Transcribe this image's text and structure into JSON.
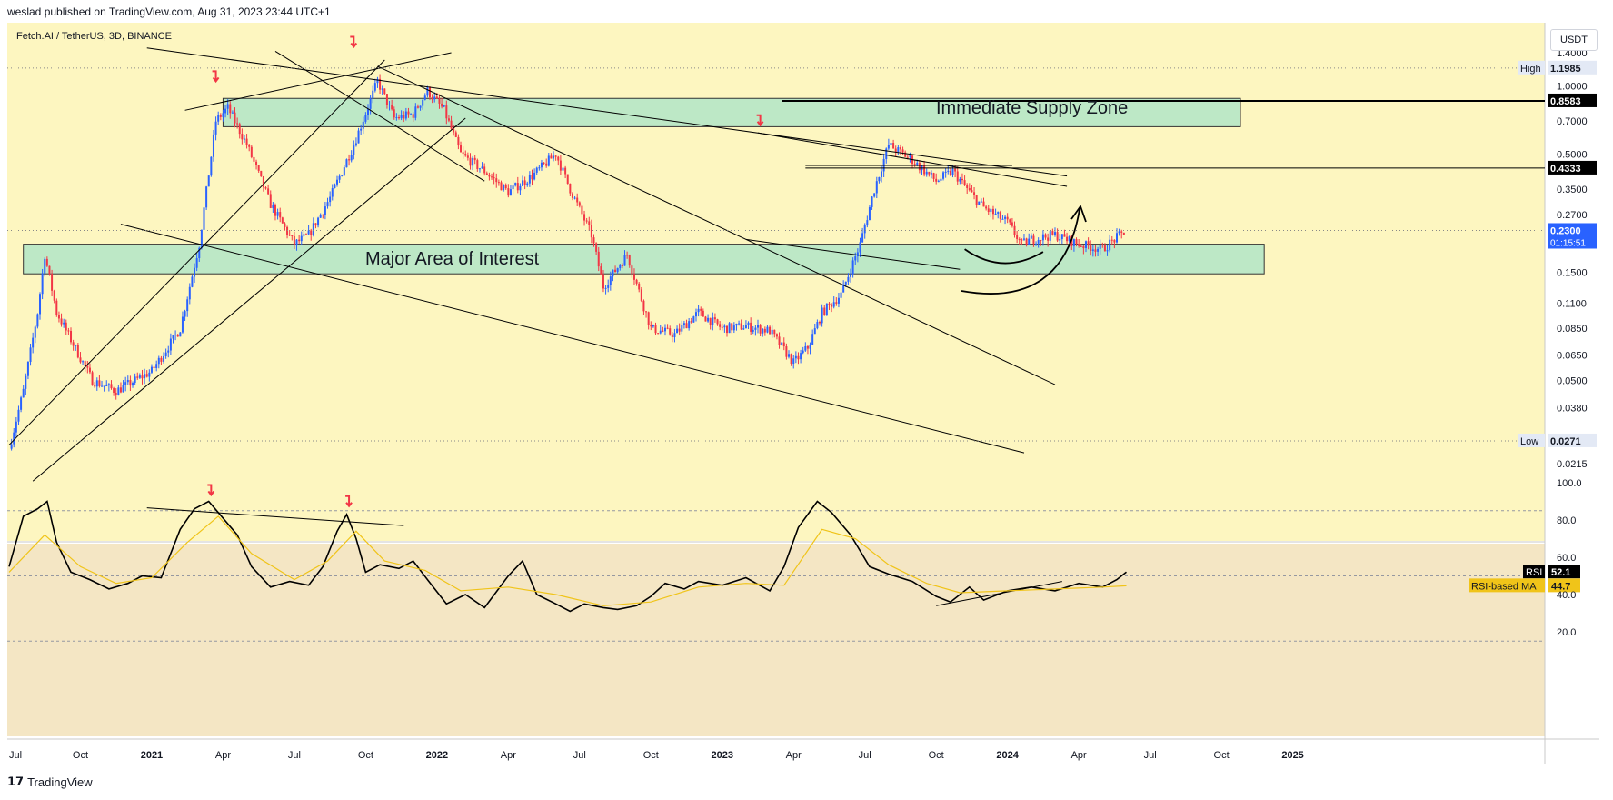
{
  "header": {
    "published": "weslad published on TradingView.com, Aug 31, 2023 23:44 UTC+1",
    "symbol": "Fetch.AI / TetherUS, 3D, BINANCE",
    "currency": "USDT"
  },
  "footer": {
    "brand": "TradingView"
  },
  "colors": {
    "background": "#fdf6c0",
    "rsi_background": "#f4e6c4",
    "up": "#2962ff",
    "down": "#f23645",
    "zone": "#bde8c6",
    "rsi_line": "#000000",
    "rsi_ma": "#f0c419"
  },
  "chart_data": [
    {
      "type": "candlestick",
      "title": "Fetch.AI / TetherUS, 3D, BINANCE",
      "y_scale": "log",
      "ylim": [
        0.0195,
        1.55
      ],
      "y_ticks": [
        "1.4000",
        "1.0000",
        "0.7000",
        "0.5000",
        "0.3500",
        "0.2700",
        "0.1500",
        "0.1100",
        "0.0850",
        "0.0650",
        "0.0500",
        "0.0380",
        "0.0215"
      ],
      "x_ticks": [
        "Jul",
        "Oct",
        "2021",
        "Apr",
        "Jul",
        "Oct",
        "2022",
        "Apr",
        "Jul",
        "Oct",
        "2023",
        "Apr",
        "Jul",
        "Oct",
        "2024",
        "Apr",
        "Jul",
        "Oct",
        "2025"
      ],
      "x_range_months": [
        0,
        66
      ],
      "price_path": [
        {
          "t": 0,
          "price": 0.025
        },
        {
          "t": 0.6,
          "price": 0.045
        },
        {
          "t": 1.2,
          "price": 0.1
        },
        {
          "t": 1.5,
          "price": 0.18
        },
        {
          "t": 2.0,
          "price": 0.1
        },
        {
          "t": 3.5,
          "price": 0.05
        },
        {
          "t": 4.5,
          "price": 0.045
        },
        {
          "t": 6.0,
          "price": 0.055
        },
        {
          "t": 7.2,
          "price": 0.085
        },
        {
          "t": 8.0,
          "price": 0.2
        },
        {
          "t": 8.7,
          "price": 0.7
        },
        {
          "t": 9.2,
          "price": 0.8
        },
        {
          "t": 10.0,
          "price": 0.55
        },
        {
          "t": 11.0,
          "price": 0.3
        },
        {
          "t": 12.0,
          "price": 0.2
        },
        {
          "t": 12.6,
          "price": 0.22
        },
        {
          "t": 13.5,
          "price": 0.32
        },
        {
          "t": 14.5,
          "price": 0.55
        },
        {
          "t": 15.5,
          "price": 1.05
        },
        {
          "t": 16.2,
          "price": 0.72
        },
        {
          "t": 17.0,
          "price": 0.75
        },
        {
          "t": 17.6,
          "price": 0.95
        },
        {
          "t": 18.3,
          "price": 0.78
        },
        {
          "t": 19.0,
          "price": 0.5
        },
        {
          "t": 20.0,
          "price": 0.42
        },
        {
          "t": 21.0,
          "price": 0.34
        },
        {
          "t": 22.0,
          "price": 0.4
        },
        {
          "t": 23.0,
          "price": 0.5
        },
        {
          "t": 23.6,
          "price": 0.35
        },
        {
          "t": 24.5,
          "price": 0.22
        },
        {
          "t": 25.0,
          "price": 0.13
        },
        {
          "t": 26.0,
          "price": 0.18
        },
        {
          "t": 27.0,
          "price": 0.085
        },
        {
          "t": 28.0,
          "price": 0.08
        },
        {
          "t": 29.0,
          "price": 0.1
        },
        {
          "t": 30.0,
          "price": 0.085
        },
        {
          "t": 31.0,
          "price": 0.087
        },
        {
          "t": 32.0,
          "price": 0.083
        },
        {
          "t": 33.0,
          "price": 0.06
        },
        {
          "t": 33.6,
          "price": 0.07
        },
        {
          "t": 34.2,
          "price": 0.1
        },
        {
          "t": 35.0,
          "price": 0.12
        },
        {
          "t": 35.8,
          "price": 0.2
        },
        {
          "t": 36.4,
          "price": 0.35
        },
        {
          "t": 37.0,
          "price": 0.55
        },
        {
          "t": 38.0,
          "price": 0.47
        },
        {
          "t": 39.0,
          "price": 0.38
        },
        {
          "t": 39.7,
          "price": 0.42
        },
        {
          "t": 40.4,
          "price": 0.34
        },
        {
          "t": 41.0,
          "price": 0.29
        },
        {
          "t": 42.0,
          "price": 0.25
        },
        {
          "t": 42.6,
          "price": 0.2
        },
        {
          "t": 43.0,
          "price": 0.21
        },
        {
          "t": 44.0,
          "price": 0.22
        },
        {
          "t": 45.0,
          "price": 0.2
        },
        {
          "t": 46.0,
          "price": 0.19
        },
        {
          "t": 46.5,
          "price": 0.21
        },
        {
          "t": 47.0,
          "price": 0.23
        }
      ],
      "price_labels": [
        {
          "label": "High",
          "value": "1.1985",
          "price": 1.1985
        },
        {
          "label": "",
          "value": "0.8583",
          "price": 0.8583
        },
        {
          "label": "",
          "value": "0.4333",
          "price": 0.4333
        },
        {
          "label": "",
          "value": "0.2300",
          "sub": "01:15:51",
          "price": 0.23
        },
        {
          "label": "Low",
          "value": "0.0271",
          "price": 0.0271
        }
      ],
      "zones": [
        {
          "name": "Immediate Supply Zone",
          "t_start": 9.0,
          "t_end": 51.8,
          "p_low": 0.66,
          "p_high": 0.88
        },
        {
          "name": "Major Area of Interest",
          "t_start": 0.6,
          "t_end": 52.8,
          "p_low": 0.148,
          "p_high": 0.2
        }
      ],
      "trendlines": [
        {
          "t1": 0.0,
          "p1": 0.026,
          "t2": 15.8,
          "p2": 1.3
        },
        {
          "t1": 1.0,
          "p1": 0.018,
          "t2": 19.2,
          "p2": 0.72
        },
        {
          "t1": 7.4,
          "p1": 0.78,
          "t2": 18.6,
          "p2": 1.4
        },
        {
          "t1": 11.2,
          "p1": 1.42,
          "t2": 20.0,
          "p2": 0.38
        },
        {
          "t1": 5.8,
          "p1": 1.47,
          "t2": 44.5,
          "p2": 0.4
        },
        {
          "t1": 15.5,
          "p1": 1.22,
          "t2": 44.0,
          "p2": 0.048
        },
        {
          "t1": 4.7,
          "p1": 0.245,
          "t2": 42.7,
          "p2": 0.024
        },
        {
          "t1": 31.5,
          "p1": 0.62,
          "t2": 44.5,
          "p2": 0.36
        },
        {
          "t1": 31.0,
          "p1": 0.21,
          "t2": 40.0,
          "p2": 0.155
        },
        {
          "t1": 33.5,
          "p1": 0.445,
          "t2": 42.2,
          "p2": 0.445
        }
      ],
      "peak_markers": [
        {
          "t": 8.7,
          "price": 1.0
        },
        {
          "t": 14.5,
          "price": 1.42
        },
        {
          "t": 31.6,
          "price": 0.64
        }
      ]
    },
    {
      "type": "line",
      "title": "RSI",
      "ylim": [
        12,
        100
      ],
      "y_ticks": [
        "100.0",
        "80.0",
        "60.0",
        "40.0",
        "20.0"
      ],
      "bands": [
        85,
        50,
        15
      ],
      "series": [
        {
          "name": "RSI",
          "points": [
            {
              "t": 0,
              "v": 55
            },
            {
              "t": 0.6,
              "v": 82
            },
            {
              "t": 1.2,
              "v": 86
            },
            {
              "t": 1.6,
              "v": 90
            },
            {
              "t": 2.0,
              "v": 68
            },
            {
              "t": 2.6,
              "v": 52
            },
            {
              "t": 3.4,
              "v": 48
            },
            {
              "t": 4.2,
              "v": 43
            },
            {
              "t": 5.0,
              "v": 46
            },
            {
              "t": 5.6,
              "v": 50
            },
            {
              "t": 6.4,
              "v": 49
            },
            {
              "t": 7.2,
              "v": 75
            },
            {
              "t": 7.8,
              "v": 86
            },
            {
              "t": 8.4,
              "v": 90
            },
            {
              "t": 8.8,
              "v": 84
            },
            {
              "t": 9.6,
              "v": 72
            },
            {
              "t": 10.2,
              "v": 55
            },
            {
              "t": 11.0,
              "v": 44
            },
            {
              "t": 11.8,
              "v": 47
            },
            {
              "t": 12.6,
              "v": 45
            },
            {
              "t": 13.2,
              "v": 55
            },
            {
              "t": 13.8,
              "v": 74
            },
            {
              "t": 14.2,
              "v": 83
            },
            {
              "t": 14.6,
              "v": 70
            },
            {
              "t": 15.0,
              "v": 52
            },
            {
              "t": 15.6,
              "v": 56
            },
            {
              "t": 16.4,
              "v": 54
            },
            {
              "t": 17.0,
              "v": 58
            },
            {
              "t": 17.6,
              "v": 48
            },
            {
              "t": 18.4,
              "v": 35
            },
            {
              "t": 19.2,
              "v": 40
            },
            {
              "t": 20.0,
              "v": 33
            },
            {
              "t": 21.0,
              "v": 50
            },
            {
              "t": 21.6,
              "v": 58
            },
            {
              "t": 22.2,
              "v": 40
            },
            {
              "t": 23.0,
              "v": 35
            },
            {
              "t": 23.6,
              "v": 31
            },
            {
              "t": 24.2,
              "v": 35
            },
            {
              "t": 25.0,
              "v": 33
            },
            {
              "t": 25.6,
              "v": 32
            },
            {
              "t": 26.4,
              "v": 34
            },
            {
              "t": 27.0,
              "v": 39
            },
            {
              "t": 27.6,
              "v": 46
            },
            {
              "t": 28.4,
              "v": 43
            },
            {
              "t": 29.0,
              "v": 47
            },
            {
              "t": 30.0,
              "v": 45
            },
            {
              "t": 31.0,
              "v": 49
            },
            {
              "t": 32.0,
              "v": 42
            },
            {
              "t": 32.6,
              "v": 55
            },
            {
              "t": 33.2,
              "v": 76
            },
            {
              "t": 34.0,
              "v": 90
            },
            {
              "t": 34.6,
              "v": 84
            },
            {
              "t": 35.4,
              "v": 72
            },
            {
              "t": 36.2,
              "v": 55
            },
            {
              "t": 37.0,
              "v": 51
            },
            {
              "t": 38.0,
              "v": 47
            },
            {
              "t": 39.0,
              "v": 39
            },
            {
              "t": 39.6,
              "v": 36
            },
            {
              "t": 40.4,
              "v": 44
            },
            {
              "t": 41.0,
              "v": 37
            },
            {
              "t": 42.0,
              "v": 42
            },
            {
              "t": 43.0,
              "v": 44
            },
            {
              "t": 44.0,
              "v": 42
            },
            {
              "t": 45.0,
              "v": 46
            },
            {
              "t": 46.0,
              "v": 44
            },
            {
              "t": 46.6,
              "v": 48
            },
            {
              "t": 47.0,
              "v": 52.1
            }
          ]
        },
        {
          "name": "RSI-based MA",
          "points": [
            {
              "t": 0,
              "v": 52
            },
            {
              "t": 1.5,
              "v": 72
            },
            {
              "t": 3.0,
              "v": 55
            },
            {
              "t": 4.5,
              "v": 46
            },
            {
              "t": 6.0,
              "v": 49
            },
            {
              "t": 7.5,
              "v": 68
            },
            {
              "t": 8.8,
              "v": 82
            },
            {
              "t": 10.2,
              "v": 62
            },
            {
              "t": 12.0,
              "v": 48
            },
            {
              "t": 13.4,
              "v": 58
            },
            {
              "t": 14.6,
              "v": 74
            },
            {
              "t": 15.8,
              "v": 58
            },
            {
              "t": 17.5,
              "v": 53
            },
            {
              "t": 19.0,
              "v": 42
            },
            {
              "t": 21.0,
              "v": 44
            },
            {
              "t": 23.0,
              "v": 40
            },
            {
              "t": 25.0,
              "v": 34
            },
            {
              "t": 27.0,
              "v": 36
            },
            {
              "t": 29.0,
              "v": 44
            },
            {
              "t": 31.0,
              "v": 46
            },
            {
              "t": 32.6,
              "v": 45
            },
            {
              "t": 34.2,
              "v": 75
            },
            {
              "t": 35.6,
              "v": 70
            },
            {
              "t": 37.0,
              "v": 56
            },
            {
              "t": 38.6,
              "v": 46
            },
            {
              "t": 40.0,
              "v": 41
            },
            {
              "t": 42.0,
              "v": 42
            },
            {
              "t": 44.0,
              "v": 43
            },
            {
              "t": 46.0,
              "v": 44
            },
            {
              "t": 47.0,
              "v": 44.7
            }
          ]
        }
      ],
      "trendlines": [
        {
          "t1": 5.8,
          "v1": 86.5,
          "t2": 16.6,
          "v2": 77
        },
        {
          "t1": 39.0,
          "v1": 34,
          "t2": 44.3,
          "v2": 47
        }
      ],
      "peak_markers": [
        {
          "t": 8.5,
          "v": 91
        },
        {
          "t": 14.3,
          "v": 85
        }
      ],
      "value_labels": [
        {
          "label": "RSI",
          "value": "52.1",
          "v": 52.1
        },
        {
          "label": "RSI-based MA",
          "value": "44.7",
          "v": 44.7
        }
      ]
    }
  ]
}
